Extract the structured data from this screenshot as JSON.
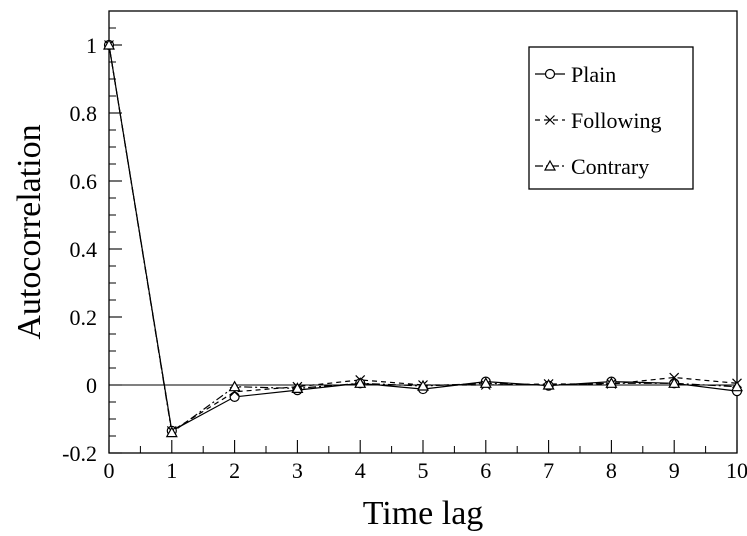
{
  "chart_data": {
    "type": "line",
    "xlabel": "Time lag",
    "ylabel": "Autocorrelation",
    "xlim": [
      0,
      10
    ],
    "ylim": [
      -0.2,
      1.1
    ],
    "xticks": [
      "0",
      "1",
      "2",
      "3",
      "4",
      "5",
      "6",
      "7",
      "8",
      "9",
      "10"
    ],
    "yticks": [
      "-0.2",
      "0",
      "0.2",
      "0.4",
      "0.6",
      "0.8",
      "1"
    ],
    "ytick_values": [
      -0.2,
      0,
      0.2,
      0.4,
      0.6,
      0.8,
      1.0
    ],
    "zero_line": true,
    "grid": false,
    "legend_position": "top-right",
    "x": [
      0,
      1,
      2,
      3,
      4,
      5,
      6,
      7,
      8,
      9,
      10
    ],
    "series": [
      {
        "name": "Plain",
        "marker": "circle",
        "line_style": "solid",
        "color": "#000000",
        "values": [
          1.0,
          -0.135,
          -0.035,
          -0.015,
          0.005,
          -0.012,
          0.01,
          -0.002,
          0.01,
          0.005,
          -0.018
        ]
      },
      {
        "name": "Following",
        "marker": "x",
        "line_style": "dashed",
        "color": "#000000",
        "values": [
          1.0,
          -0.135,
          -0.02,
          -0.005,
          0.015,
          0.0,
          0.0,
          0.003,
          0.003,
          0.022,
          0.005
        ]
      },
      {
        "name": "Contrary",
        "marker": "triangle",
        "line_style": "dashdot",
        "color": "#000000",
        "values": [
          1.0,
          -0.14,
          -0.005,
          -0.01,
          0.005,
          -0.003,
          0.005,
          0.0,
          0.005,
          0.005,
          -0.005
        ]
      }
    ]
  }
}
